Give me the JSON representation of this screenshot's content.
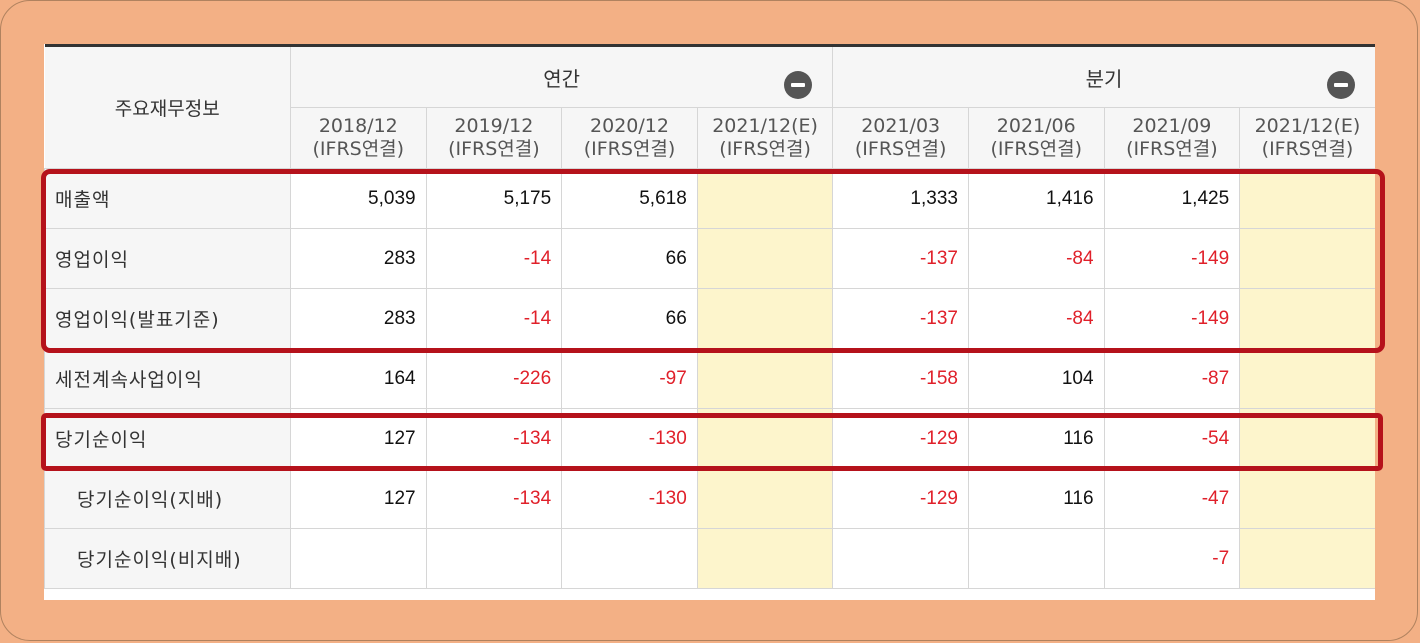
{
  "table": {
    "corner_label": "주요재무정보",
    "groups": [
      {
        "label": "연간",
        "toggle_icon": "minus-circle-icon"
      },
      {
        "label": "분기",
        "toggle_icon": "minus-circle-icon"
      }
    ],
    "periods": [
      {
        "date": "2018/12",
        "basis": "(IFRS연결)"
      },
      {
        "date": "2019/12",
        "basis": "(IFRS연결)"
      },
      {
        "date": "2020/12",
        "basis": "(IFRS연결)"
      },
      {
        "date": "2021/12(E)",
        "basis": "(IFRS연결)"
      },
      {
        "date": "2021/03",
        "basis": "(IFRS연결)"
      },
      {
        "date": "2021/06",
        "basis": "(IFRS연결)"
      },
      {
        "date": "2021/09",
        "basis": "(IFRS연결)"
      },
      {
        "date": "2021/12(E)",
        "basis": "(IFRS연결)"
      }
    ],
    "rows": [
      {
        "label": "매출액",
        "values": [
          "5,039",
          "5,175",
          "5,618",
          "",
          "1,333",
          "1,416",
          "1,425",
          ""
        ]
      },
      {
        "label": "영업이익",
        "values": [
          "283",
          "-14",
          "66",
          "",
          "-137",
          "-84",
          "-149",
          ""
        ]
      },
      {
        "label": "영업이익(발표기준)",
        "values": [
          "283",
          "-14",
          "66",
          "",
          "-137",
          "-84",
          "-149",
          ""
        ]
      },
      {
        "label": "세전계속사업이익",
        "values": [
          "164",
          "-226",
          "-97",
          "",
          "-158",
          "104",
          "-87",
          ""
        ]
      },
      {
        "label": "당기순이익",
        "values": [
          "127",
          "-134",
          "-130",
          "",
          "-129",
          "116",
          "-54",
          ""
        ]
      },
      {
        "label": "당기순이익(지배)",
        "values": [
          "127",
          "-134",
          "-130",
          "",
          "-129",
          "116",
          "-47",
          ""
        ]
      },
      {
        "label": "당기순이익(비지배)",
        "values": [
          "",
          "",
          "",
          "",
          "",
          "",
          "-7",
          ""
        ]
      }
    ]
  },
  "colors": {
    "negative": "#e0202a",
    "estimate_bg": "#fdf5cc",
    "highlight_border": "#b5121b",
    "background": "#f3b085"
  }
}
